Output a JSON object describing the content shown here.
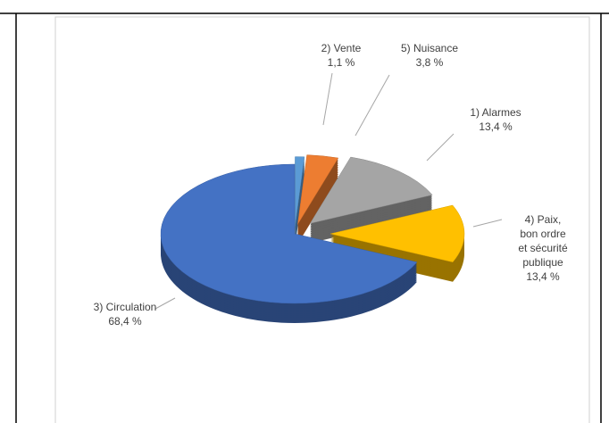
{
  "chart_data": {
    "type": "pie",
    "categories": [
      "2) Vente",
      "5) Nuisance",
      "1) Alarmes",
      "4) Paix, bon ordre et sécurité publique",
      "3) Circulation"
    ],
    "values": [
      1.1,
      3.8,
      13.4,
      13.4,
      68.4
    ],
    "value_labels": [
      "1,1 %",
      "3,8 %",
      "13,4 %",
      "13,4 %",
      "68,4 %"
    ],
    "colors": [
      "#5b9bd5",
      "#ed7d31",
      "#a5a5a5",
      "#ffc000",
      "#4472c4"
    ]
  }
}
